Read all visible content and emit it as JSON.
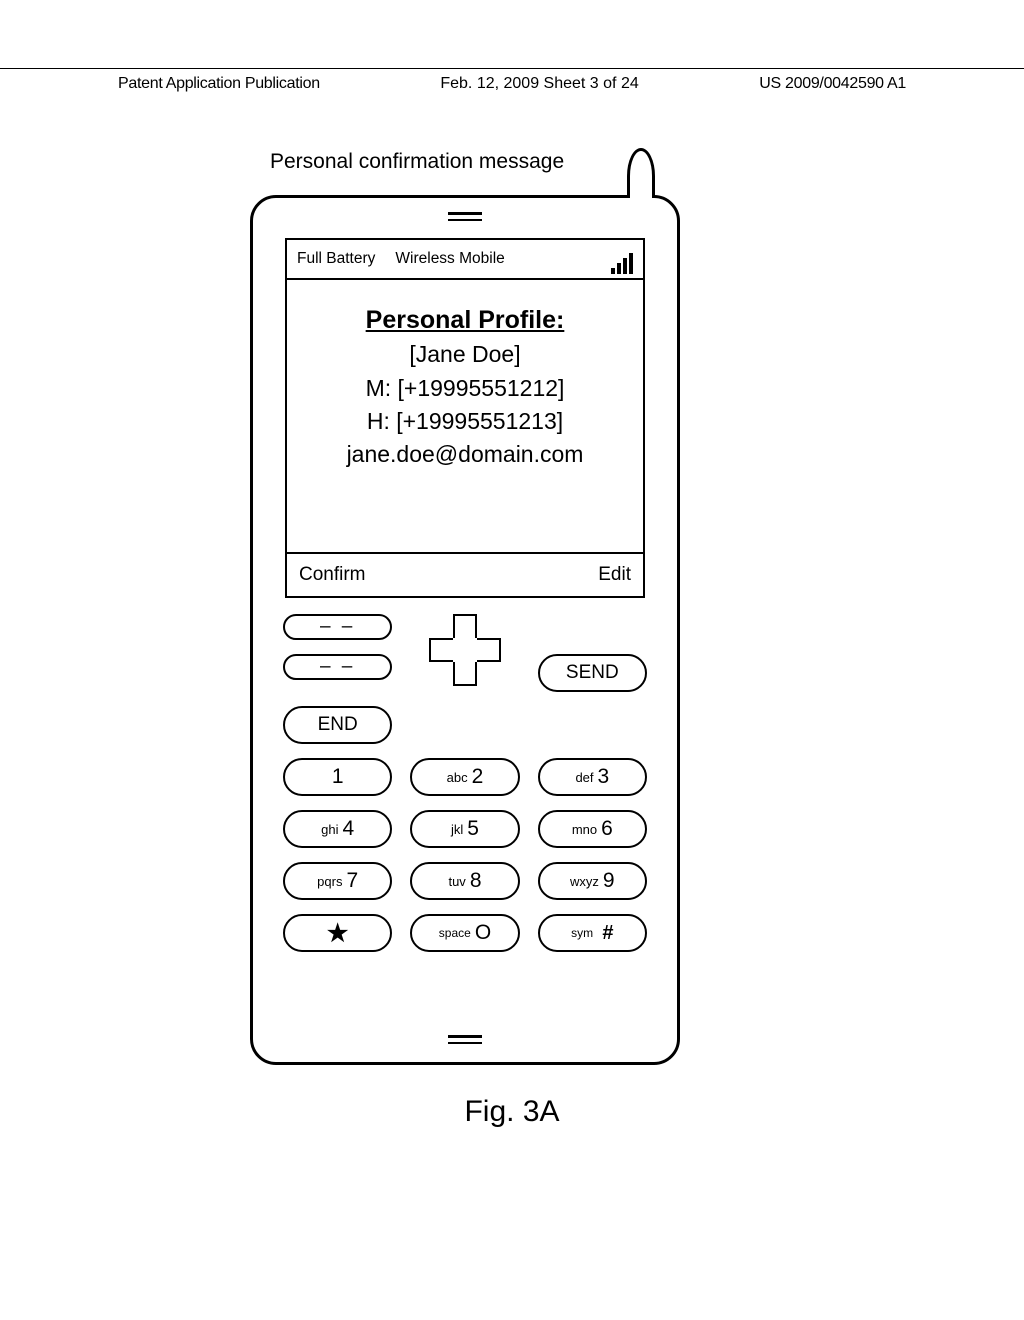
{
  "header": {
    "left": "Patent Application Publication",
    "center": "Feb. 12, 2009  Sheet 3 of 24",
    "right": "US 2009/0042590 A1"
  },
  "caption": "Personal confirmation message",
  "status": {
    "battery": "Full Battery",
    "carrier": "Wireless Mobile"
  },
  "profile": {
    "title": "Personal Profile:",
    "name": "[Jane Doe]",
    "mobile": "M: [+19995551212]",
    "home": "H: [+19995551213]",
    "email": "jane.doe@domain.com"
  },
  "softkeys": {
    "left": "Confirm",
    "right": "Edit"
  },
  "actionkeys": {
    "send": "SEND",
    "end": "END"
  },
  "keypad": {
    "k1": {
      "letters": "",
      "num": "1"
    },
    "k2": {
      "letters": "abc",
      "num": "2"
    },
    "k3": {
      "letters": "def",
      "num": "3"
    },
    "k4": {
      "letters": "ghi",
      "num": "4"
    },
    "k5": {
      "letters": "jkl",
      "num": "5"
    },
    "k6": {
      "letters": "mno",
      "num": "6"
    },
    "k7": {
      "letters": "pqrs",
      "num": "7"
    },
    "k8": {
      "letters": "tuv",
      "num": "8"
    },
    "k9": {
      "letters": "wxyz",
      "num": "9"
    },
    "kstar": {
      "sym": "★"
    },
    "k0": {
      "letters": "space",
      "num": "O"
    },
    "khash": {
      "letters": "sym",
      "sym": "#"
    }
  },
  "figure_label": "Fig. 3A",
  "style": {
    "stroke": "#000000",
    "background": "#ffffff",
    "border_radius_phone": 26,
    "border_radius_key": 20,
    "stroke_width_phone": 3,
    "stroke_width_screen": 2,
    "font_sizes": {
      "header": 16,
      "caption": 21,
      "status": 15.5,
      "content": 23,
      "content_title": 25,
      "softkey": 19,
      "key": 19,
      "key_letters": 13,
      "key_num": 21,
      "figure": 30
    }
  }
}
